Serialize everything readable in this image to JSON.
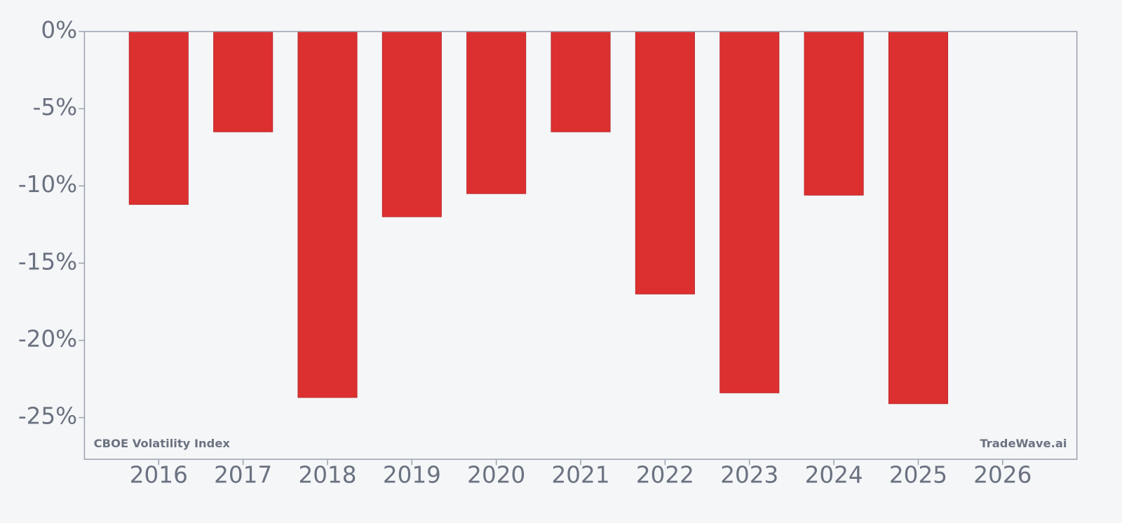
{
  "chart_data": {
    "type": "bar",
    "annotations": [
      "CBOE Volatility Index",
      "TradeWave.ai"
    ],
    "x": [
      2016,
      2017,
      2018,
      2019,
      2020,
      2021,
      2022,
      2023,
      2024,
      2025
    ],
    "values": [
      -11.2,
      -6.5,
      -23.7,
      -12.0,
      -10.5,
      -6.5,
      -17.0,
      -23.4,
      -10.6,
      -24.1
    ],
    "color": "#dc3030",
    "xlim": [
      2015.12,
      2026.88
    ],
    "xticks": [
      2016,
      2017,
      2018,
      2019,
      2020,
      2021,
      2022,
      2023,
      2024,
      2025,
      2026
    ],
    "ylim": [
      -27.7,
      0
    ],
    "yticks": [
      {
        "value": 0,
        "label": "0%"
      },
      {
        "value": -5,
        "label": "-5%"
      },
      {
        "value": -10,
        "label": "-10%"
      },
      {
        "value": -15,
        "label": "-15%"
      },
      {
        "value": -20,
        "label": "-20%"
      },
      {
        "value": -25,
        "label": "-25%"
      }
    ]
  }
}
